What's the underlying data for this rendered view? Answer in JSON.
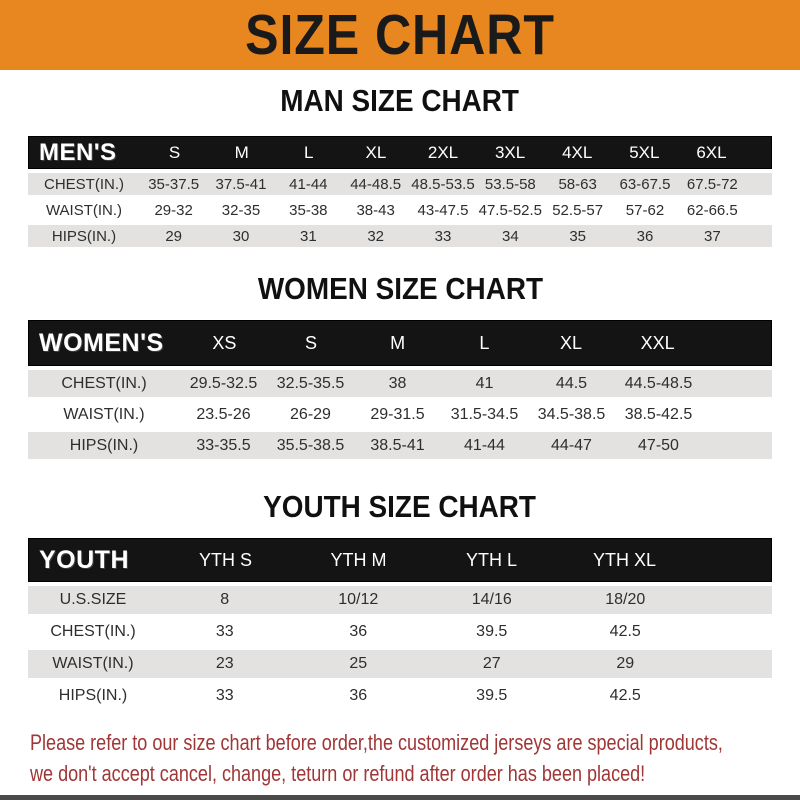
{
  "banner": {
    "title": "SIZE CHART"
  },
  "colors": {
    "banner_bg": "#E8861F",
    "table_header_bg": "#141414",
    "row_stripe": "#E3E2E0",
    "note_red": "#A03636"
  },
  "sections": [
    {
      "title": "MAN SIZE CHART",
      "header": {
        "label": "MEN'S",
        "columns": [
          "S",
          "M",
          "L",
          "XL",
          "2XL",
          "3XL",
          "4XL",
          "5XL",
          "6XL"
        ]
      },
      "rows": [
        {
          "label": "CHEST(IN.)",
          "values": [
            "35-37.5",
            "37.5-41",
            "41-44",
            "44-48.5",
            "48.5-53.5",
            "53.5-58",
            "58-63",
            "63-67.5",
            "67.5-72"
          ]
        },
        {
          "label": "WAIST(IN.)",
          "values": [
            "29-32",
            "32-35",
            "35-38",
            "38-43",
            "43-47.5",
            "47.5-52.5",
            "52.5-57",
            "57-62",
            "62-66.5"
          ]
        },
        {
          "label": "HIPS(IN.)",
          "values": [
            "29",
            "30",
            "31",
            "32",
            "33",
            "34",
            "35",
            "36",
            "37"
          ]
        }
      ]
    },
    {
      "title": "WOMEN SIZE CHART",
      "header": {
        "label": "WOMEN'S",
        "columns": [
          "XS",
          "S",
          "M",
          "L",
          "XL",
          "XXL"
        ]
      },
      "rows": [
        {
          "label": "CHEST(IN.)",
          "values": [
            "29.5-32.5",
            "32.5-35.5",
            "38",
            "41",
            "44.5",
            "44.5-48.5"
          ]
        },
        {
          "label": "WAIST(IN.)",
          "values": [
            "23.5-26",
            "26-29",
            "29-31.5",
            "31.5-34.5",
            "34.5-38.5",
            "38.5-42.5"
          ]
        },
        {
          "label": "HIPS(IN.)",
          "values": [
            "33-35.5",
            "35.5-38.5",
            "38.5-41",
            "41-44",
            "44-47",
            "47-50"
          ]
        }
      ]
    },
    {
      "title": "YOUTH SIZE CHART",
      "header": {
        "label": "YOUTH",
        "columns": [
          "YTH S",
          "YTH M",
          "YTH L",
          "YTH XL"
        ]
      },
      "rows": [
        {
          "label": "U.S.SIZE",
          "values": [
            "8",
            "10/12",
            "14/16",
            "18/20"
          ]
        },
        {
          "label": "CHEST(IN.)",
          "values": [
            "33",
            "36",
            "39.5",
            "42.5"
          ]
        },
        {
          "label": "WAIST(IN.)",
          "values": [
            "23",
            "25",
            "27",
            "29"
          ]
        },
        {
          "label": "HIPS(IN.)",
          "values": [
            "33",
            "36",
            "39.5",
            "42.5"
          ]
        }
      ]
    }
  ],
  "note": {
    "line1": "Please refer to our size chart before order,the customized jerseys are special products,",
    "line2": "we don't accept cancel, change, teturn or refund after order has been placed!"
  }
}
